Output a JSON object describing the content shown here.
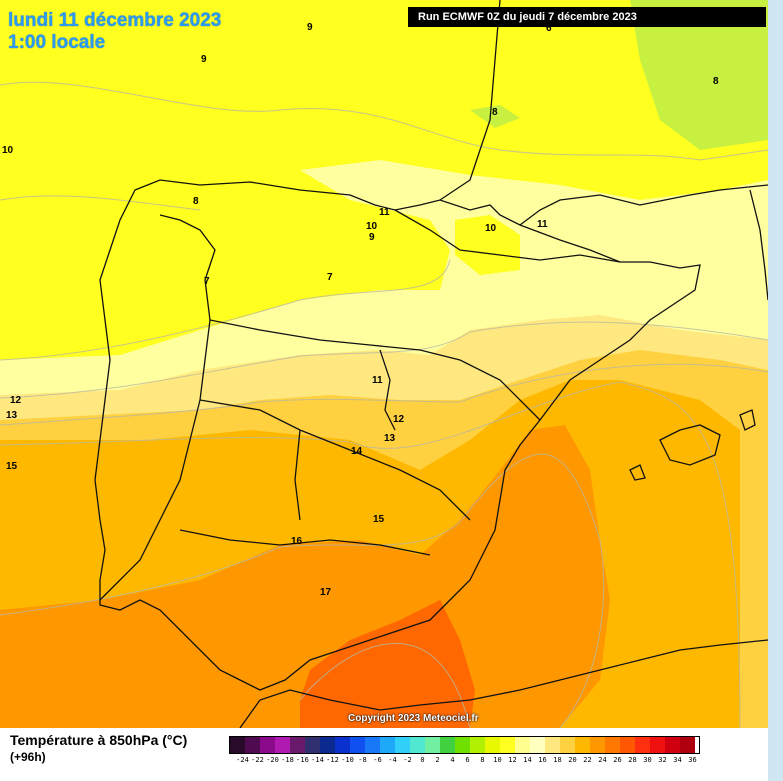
{
  "header": {
    "date_line": "lundi 11 décembre 2023",
    "time_line": "1:00 locale",
    "run_label": "Run ECMWF 0Z du jeudi 7 décembre 2023"
  },
  "footer": {
    "copyright": "Copyright 2023 Meteociel.fr"
  },
  "legend": {
    "title": "Température à 850hPa (°C)",
    "subtitle": "(+96h)",
    "colors": [
      "#2a0a2a",
      "#500a50",
      "#8a0a8a",
      "#b01ab0",
      "#6a1a6a",
      "#303070",
      "#0a2a90",
      "#0a30d0",
      "#1050f0",
      "#1878f8",
      "#20a8f8",
      "#30d0f8",
      "#50e8d0",
      "#70f0a0",
      "#40d040",
      "#70e000",
      "#b0f000",
      "#e8f800",
      "#ffff20",
      "#ffff90",
      "#ffffc0",
      "#ffe880",
      "#ffd040",
      "#ffb800",
      "#ff9800",
      "#ff7800",
      "#ff5800",
      "#ff3010",
      "#f01010",
      "#d00010",
      "#b00010",
      "#900000",
      "#700000",
      "#500000",
      "#200000"
    ],
    "ticks": [
      "-24",
      "-22",
      "-20",
      "-18",
      "-16",
      "-14",
      "-12",
      "-10",
      "-8",
      "-6",
      "-4",
      "-2",
      "0",
      "2",
      "4",
      "6",
      "8",
      "10",
      "12",
      "14",
      "16",
      "18",
      "20",
      "22",
      "24",
      "26",
      "28",
      "30",
      "32",
      "34",
      "36"
    ]
  },
  "isotherm_labels": [
    "9",
    "9",
    "6",
    "8",
    "8",
    "10",
    "8",
    "11",
    "10",
    "9",
    "11",
    "10",
    "7",
    "7",
    "12",
    "13",
    "15",
    "11",
    "12",
    "13",
    "14",
    "15",
    "16",
    "17"
  ]
}
